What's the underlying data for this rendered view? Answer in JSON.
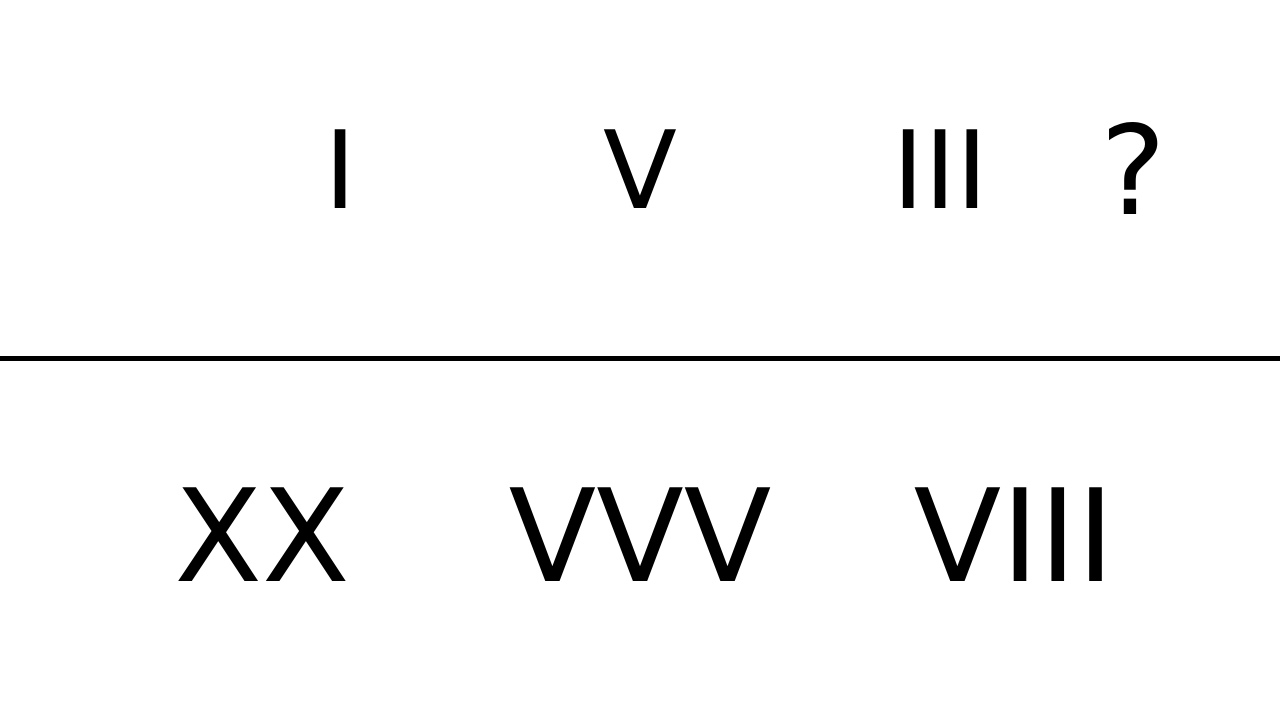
{
  "top_row": {
    "items": [
      "I",
      "V",
      "III"
    ],
    "question": "?"
  },
  "bottom_row": {
    "items": [
      "XX",
      "VVV",
      "VIII"
    ]
  },
  "colors": {
    "text": "#000000",
    "divider": "#000000",
    "background": "#ffffff"
  }
}
